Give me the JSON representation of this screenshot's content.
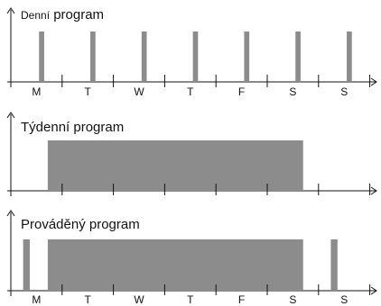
{
  "colors": {
    "bar": "#8c8c8c",
    "axis": "#111111",
    "background": "#ffffff"
  },
  "panels": [
    {
      "id": "daily",
      "title_prefix": "Denní",
      "title_suffix": " program",
      "days": [
        "M",
        "T",
        "W",
        "T",
        "F",
        "S",
        "S"
      ],
      "bars": [
        {
          "start": 0.55,
          "end": 0.65
        },
        {
          "start": 1.55,
          "end": 1.65
        },
        {
          "start": 2.55,
          "end": 2.65
        },
        {
          "start": 3.55,
          "end": 3.65
        },
        {
          "start": 4.55,
          "end": 4.65
        },
        {
          "start": 5.55,
          "end": 5.65
        },
        {
          "start": 6.55,
          "end": 6.65
        }
      ]
    },
    {
      "id": "weekly",
      "title": "Týdenní program",
      "days": [],
      "bars": [
        {
          "start": 0.72,
          "end": 5.7
        }
      ]
    },
    {
      "id": "executed",
      "title": "Prováděný program",
      "days": [
        "M",
        "T",
        "W",
        "T",
        "F",
        "S",
        "S"
      ],
      "bars": [
        {
          "start": 0.24,
          "end": 0.37
        },
        {
          "start": 0.72,
          "end": 5.7
        },
        {
          "start": 6.24,
          "end": 6.37
        }
      ]
    }
  ]
}
